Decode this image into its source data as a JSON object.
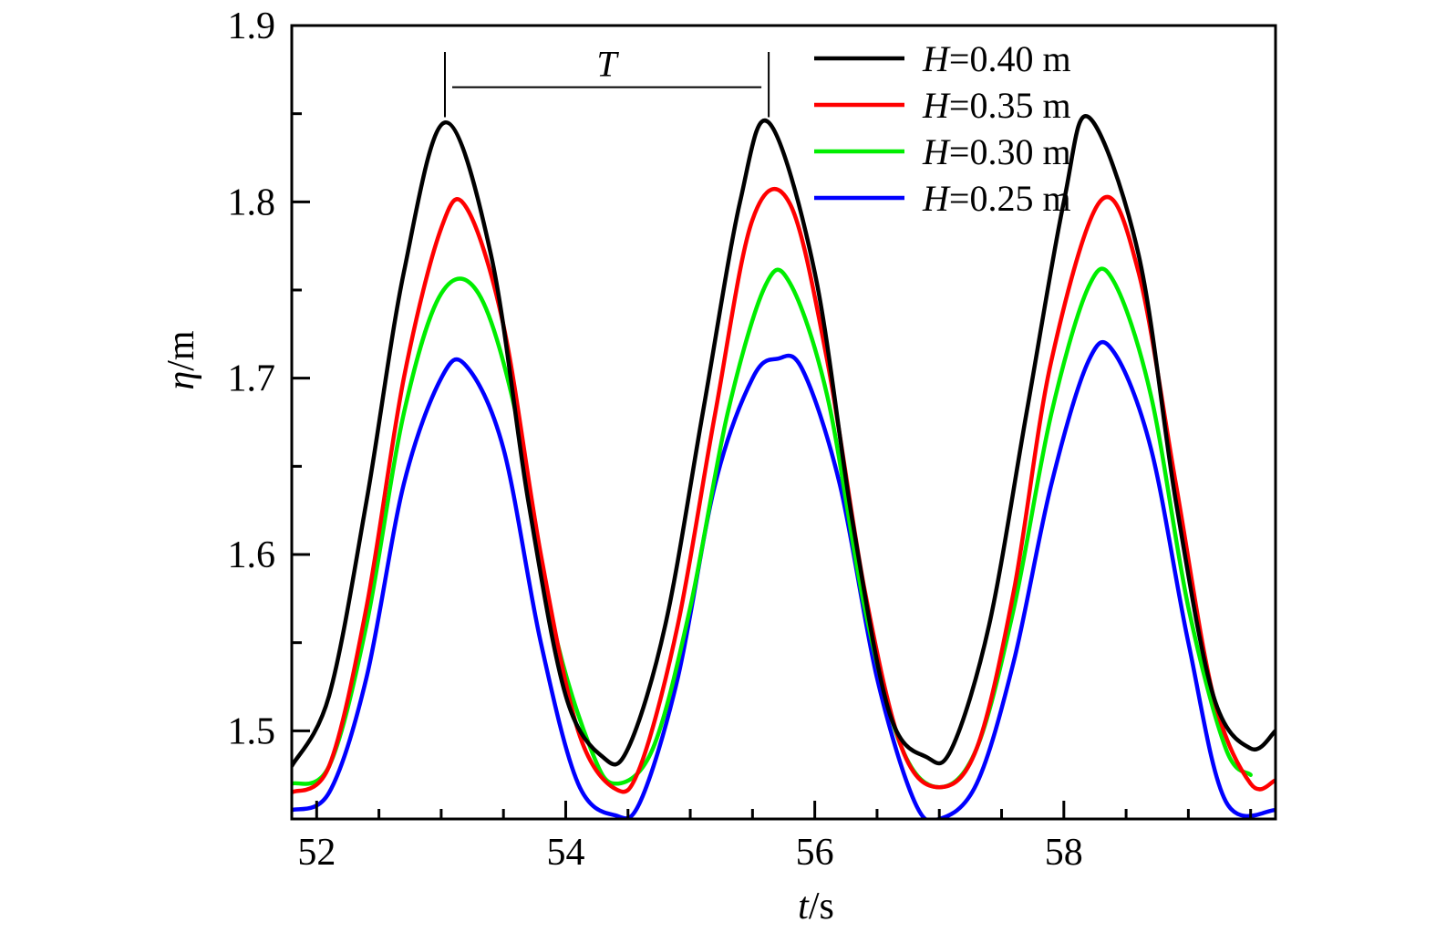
{
  "chart_data": {
    "type": "line",
    "xlabel": {
      "var": "t",
      "unit": "/s"
    },
    "ylabel": {
      "var": "η",
      "unit": "/m"
    },
    "xlim": [
      51.8,
      59.7
    ],
    "ylim": [
      1.45,
      1.9
    ],
    "x_ticks": [
      52,
      54,
      56,
      58
    ],
    "x_tick_labels": [
      "52",
      "54",
      "56",
      "58"
    ],
    "y_ticks": [
      1.5,
      1.6,
      1.7,
      1.8,
      1.9
    ],
    "y_tick_labels": [
      "1.5",
      "1.6",
      "1.7",
      "1.8",
      "1.9"
    ],
    "legend_position": "top-right",
    "annotation": {
      "label": "T",
      "x_start": 53.03,
      "x_end": 55.63,
      "y": 1.865
    },
    "series": [
      {
        "name": {
          "var": "H",
          "value": "=0.40 m"
        },
        "color": "#000000",
        "amplitude": 0.181,
        "x": [
          51.8,
          52.1,
          52.4,
          52.7,
          53.03,
          53.4,
          53.7,
          54.0,
          54.3,
          54.5,
          54.8,
          55.1,
          55.4,
          55.63,
          56.0,
          56.3,
          56.6,
          56.9,
          57.1,
          57.4,
          57.7,
          58.0,
          58.2,
          58.6,
          58.9,
          59.2,
          59.5,
          59.7
        ],
        "y": [
          1.48,
          1.52,
          1.63,
          1.76,
          1.845,
          1.77,
          1.63,
          1.52,
          1.485,
          1.49,
          1.56,
          1.68,
          1.8,
          1.845,
          1.76,
          1.62,
          1.51,
          1.485,
          1.49,
          1.56,
          1.68,
          1.8,
          1.848,
          1.77,
          1.63,
          1.52,
          1.49,
          1.5
        ]
      },
      {
        "name": {
          "var": "H",
          "value": "=0.35 m"
        },
        "color": "#ff0000",
        "amplitude": 0.166,
        "x": [
          51.8,
          52.1,
          52.4,
          52.7,
          53.0,
          53.2,
          53.5,
          53.8,
          54.1,
          54.4,
          54.6,
          54.9,
          55.2,
          55.5,
          55.8,
          56.1,
          56.4,
          56.7,
          57.0,
          57.3,
          57.6,
          57.9,
          58.3,
          58.6,
          58.9,
          59.2,
          59.5,
          59.7
        ],
        "y": [
          1.465,
          1.48,
          1.57,
          1.7,
          1.785,
          1.797,
          1.73,
          1.6,
          1.5,
          1.467,
          1.48,
          1.56,
          1.68,
          1.79,
          1.799,
          1.71,
          1.58,
          1.49,
          1.468,
          1.49,
          1.58,
          1.71,
          1.801,
          1.76,
          1.64,
          1.52,
          1.47,
          1.472
        ]
      },
      {
        "name": {
          "var": "H",
          "value": "=0.30 m"
        },
        "color": "#00ee00",
        "amplitude": 0.141,
        "x": [
          51.8,
          52.1,
          52.4,
          52.7,
          53.0,
          53.3,
          53.6,
          53.9,
          54.2,
          54.4,
          54.7,
          55.0,
          55.3,
          55.6,
          55.8,
          56.1,
          56.4,
          56.7,
          57.0,
          57.3,
          57.6,
          57.9,
          58.2,
          58.4,
          58.7,
          59.0,
          59.3,
          59.5
        ],
        "y": [
          1.47,
          1.48,
          1.56,
          1.68,
          1.748,
          1.748,
          1.68,
          1.56,
          1.49,
          1.47,
          1.49,
          1.57,
          1.68,
          1.752,
          1.754,
          1.69,
          1.57,
          1.49,
          1.468,
          1.49,
          1.57,
          1.68,
          1.752,
          1.755,
          1.69,
          1.57,
          1.49,
          1.475
        ]
      },
      {
        "name": {
          "var": "H",
          "value": "=0.25 m"
        },
        "color": "#0000ff",
        "amplitude": 0.131,
        "x": [
          51.8,
          52.1,
          52.4,
          52.7,
          53.0,
          53.2,
          53.5,
          53.8,
          54.1,
          54.4,
          54.6,
          54.9,
          55.2,
          55.5,
          55.7,
          55.9,
          56.2,
          56.5,
          56.8,
          57.0,
          57.3,
          57.6,
          57.9,
          58.2,
          58.4,
          58.7,
          59.0,
          59.3,
          59.7
        ],
        "y": [
          1.455,
          1.465,
          1.53,
          1.64,
          1.7,
          1.707,
          1.66,
          1.55,
          1.47,
          1.452,
          1.46,
          1.53,
          1.64,
          1.7,
          1.711,
          1.705,
          1.64,
          1.53,
          1.46,
          1.45,
          1.47,
          1.54,
          1.64,
          1.71,
          1.715,
          1.66,
          1.55,
          1.46,
          1.455
        ]
      }
    ]
  }
}
